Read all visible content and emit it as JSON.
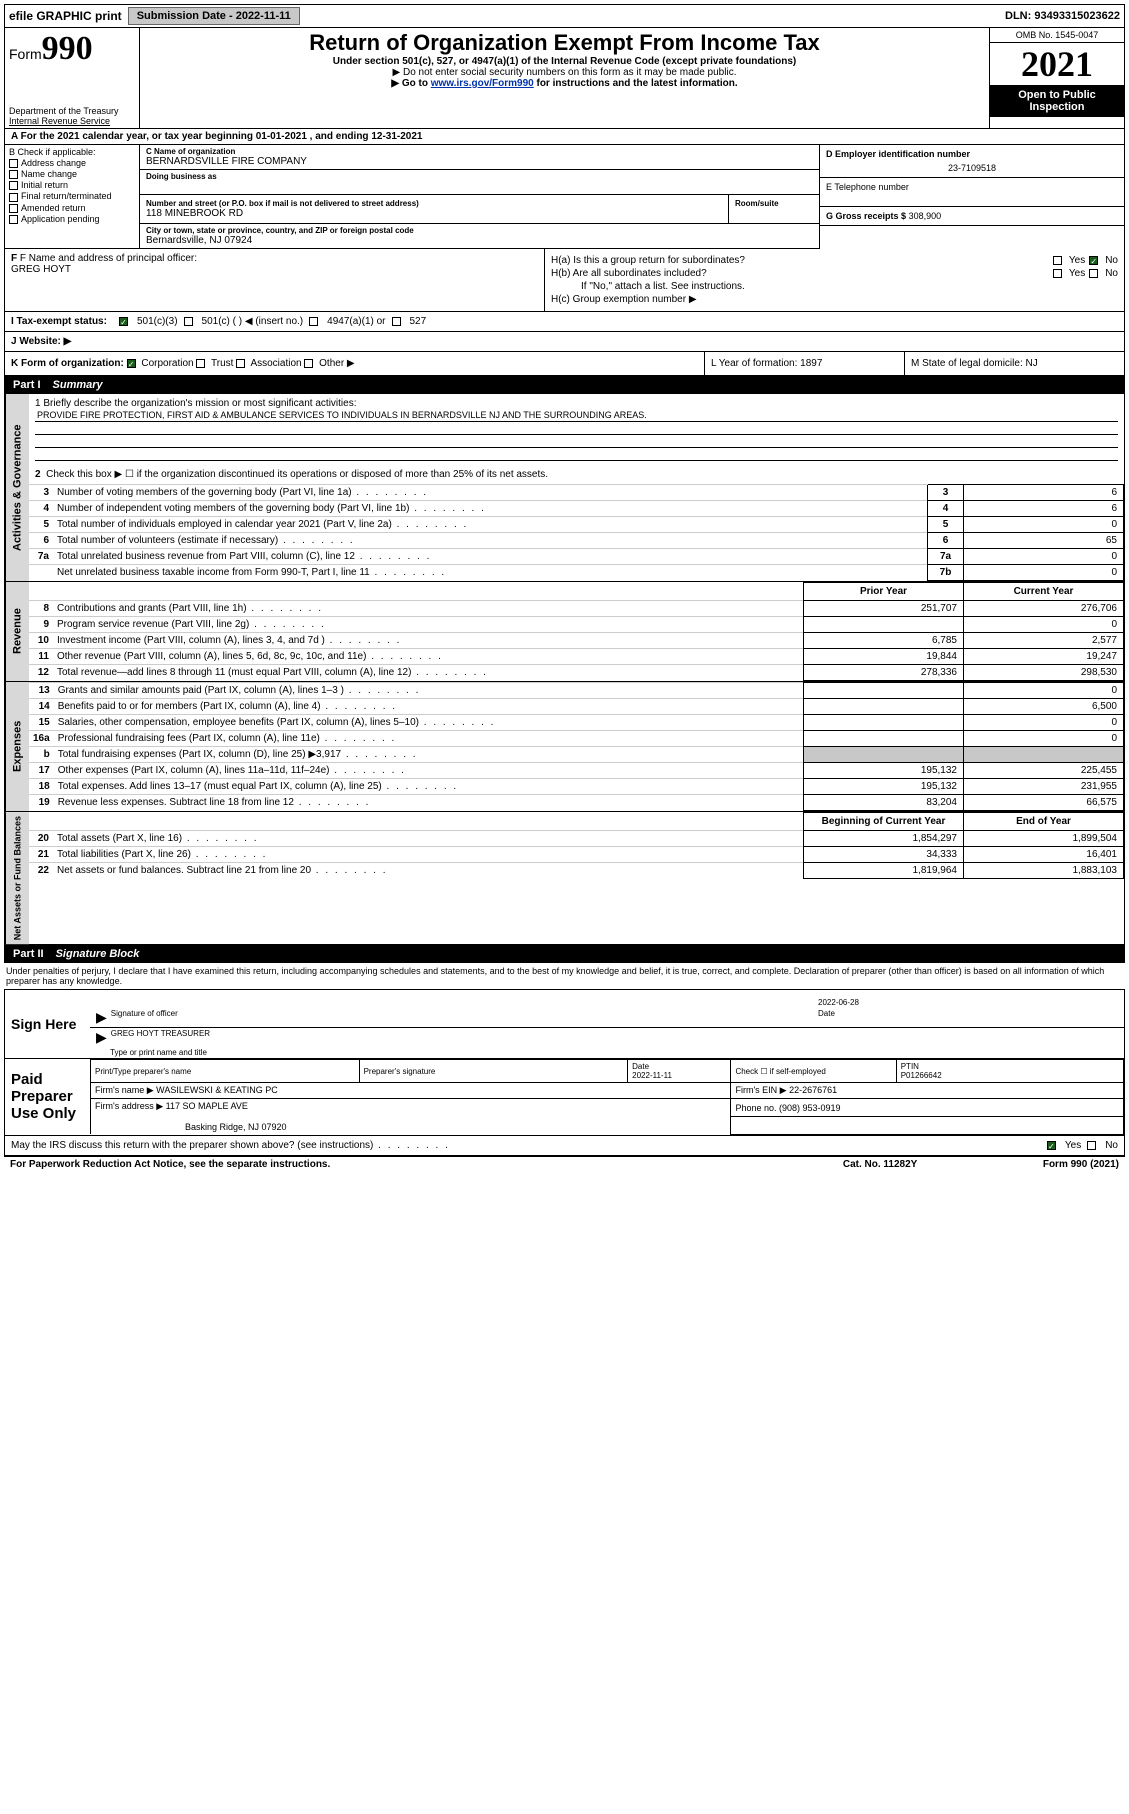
{
  "topbar": {
    "efile": "efile GRAPHIC print",
    "submission_label": "Submission Date - 2022-11-11",
    "dln": "DLN: 93493315023622"
  },
  "header": {
    "form_word": "Form",
    "form_num": "990",
    "dept": "Department of the Treasury",
    "irs": "Internal Revenue Service",
    "title": "Return of Organization Exempt From Income Tax",
    "sub": "Under section 501(c), 527, or 4947(a)(1) of the Internal Revenue Code (except private foundations)",
    "note1": "▶ Do not enter social security numbers on this form as it may be made public.",
    "note2_pre": "▶ Go to ",
    "note2_link": "www.irs.gov/Form990",
    "note2_post": " for instructions and the latest information.",
    "omb": "OMB No. 1545-0047",
    "year": "2021",
    "open": "Open to Public Inspection"
  },
  "row_a": "A For the 2021 calendar year, or tax year beginning 01-01-2021   , and ending 12-31-2021",
  "col_b": {
    "head": "B Check if applicable:",
    "items": [
      "Address change",
      "Name change",
      "Initial return",
      "Final return/terminated",
      "Amended return",
      "Application pending"
    ]
  },
  "c": {
    "name_lbl": "C Name of organization",
    "name": "BERNARDSVILLE FIRE COMPANY",
    "dba_lbl": "Doing business as",
    "addr_lbl": "Number and street (or P.O. box if mail is not delivered to street address)",
    "room_lbl": "Room/suite",
    "addr": "118 MINEBROOK RD",
    "city_lbl": "City or town, state or province, country, and ZIP or foreign postal code",
    "city": "Bernardsville, NJ  07924"
  },
  "d": {
    "lbl": "D Employer identification number",
    "val": "23-7109518"
  },
  "e": {
    "lbl": "E Telephone number",
    "val": ""
  },
  "g": {
    "lbl": "G Gross receipts $",
    "val": "308,900"
  },
  "f": {
    "lbl": "F Name and address of principal officer:",
    "name": "GREG HOYT"
  },
  "h": {
    "a": "H(a)  Is this a group return for subordinates?",
    "b": "H(b)  Are all subordinates included?",
    "note": "If \"No,\" attach a list. See instructions.",
    "c": "H(c)  Group exemption number ▶",
    "yes": "Yes",
    "no": "No"
  },
  "i": {
    "lbl": "I  Tax-exempt status:",
    "o1": "501(c)(3)",
    "o2": "501(c) (  ) ◀ (insert no.)",
    "o3": "4947(a)(1) or",
    "o4": "527"
  },
  "j": {
    "lbl": "J  Website: ▶",
    "val": ""
  },
  "k": {
    "lbl": "K Form of organization:",
    "o1": "Corporation",
    "o2": "Trust",
    "o3": "Association",
    "o4": "Other ▶",
    "l": "L Year of formation: 1897",
    "m": "M State of legal domicile: NJ"
  },
  "part1": {
    "num": "Part I",
    "title": "Summary"
  },
  "summary": {
    "l1_lbl": "1  Briefly describe the organization's mission or most significant activities:",
    "l1_val": "PROVIDE FIRE PROTECTION, FIRST AID & AMBULANCE SERVICES TO INDIVIDUALS IN BERNARDSVILLE NJ AND THE SURROUNDING AREAS.",
    "l2": "Check this box ▶ ☐  if the organization discontinued its operations or disposed of more than 25% of its net assets.",
    "rows_num": [
      {
        "n": "3",
        "d": "Number of voting members of the governing body (Part VI, line 1a)",
        "box": "3",
        "v": "6"
      },
      {
        "n": "4",
        "d": "Number of independent voting members of the governing body (Part VI, line 1b)",
        "box": "4",
        "v": "6"
      },
      {
        "n": "5",
        "d": "Total number of individuals employed in calendar year 2021 (Part V, line 2a)",
        "box": "5",
        "v": "0"
      },
      {
        "n": "6",
        "d": "Total number of volunteers (estimate if necessary)",
        "box": "6",
        "v": "65"
      },
      {
        "n": "7a",
        "d": "Total unrelated business revenue from Part VIII, column (C), line 12",
        "box": "7a",
        "v": "0"
      },
      {
        "n": "",
        "d": "Net unrelated business taxable income from Form 990-T, Part I, line 11",
        "box": "7b",
        "v": "0"
      }
    ],
    "col_hdr_prior": "Prior Year",
    "col_hdr_curr": "Current Year",
    "revenue": [
      {
        "n": "8",
        "d": "Contributions and grants (Part VIII, line 1h)",
        "p": "251,707",
        "c": "276,706"
      },
      {
        "n": "9",
        "d": "Program service revenue (Part VIII, line 2g)",
        "p": "",
        "c": "0"
      },
      {
        "n": "10",
        "d": "Investment income (Part VIII, column (A), lines 3, 4, and 7d )",
        "p": "6,785",
        "c": "2,577"
      },
      {
        "n": "11",
        "d": "Other revenue (Part VIII, column (A), lines 5, 6d, 8c, 9c, 10c, and 11e)",
        "p": "19,844",
        "c": "19,247"
      },
      {
        "n": "12",
        "d": "Total revenue—add lines 8 through 11 (must equal Part VIII, column (A), line 12)",
        "p": "278,336",
        "c": "298,530"
      }
    ],
    "expenses": [
      {
        "n": "13",
        "d": "Grants and similar amounts paid (Part IX, column (A), lines 1–3 )",
        "p": "",
        "c": "0"
      },
      {
        "n": "14",
        "d": "Benefits paid to or for members (Part IX, column (A), line 4)",
        "p": "",
        "c": "6,500"
      },
      {
        "n": "15",
        "d": "Salaries, other compensation, employee benefits (Part IX, column (A), lines 5–10)",
        "p": "",
        "c": "0"
      },
      {
        "n": "16a",
        "d": "Professional fundraising fees (Part IX, column (A), line 11e)",
        "p": "",
        "c": "0"
      },
      {
        "n": "b",
        "d": "Total fundraising expenses (Part IX, column (D), line 25) ▶3,917",
        "p": "GREY",
        "c": "GREY"
      },
      {
        "n": "17",
        "d": "Other expenses (Part IX, column (A), lines 11a–11d, 11f–24e)",
        "p": "195,132",
        "c": "225,455"
      },
      {
        "n": "18",
        "d": "Total expenses. Add lines 13–17 (must equal Part IX, column (A), line 25)",
        "p": "195,132",
        "c": "231,955"
      },
      {
        "n": "19",
        "d": "Revenue less expenses. Subtract line 18 from line 12",
        "p": "83,204",
        "c": "66,575"
      }
    ],
    "col_hdr_beg": "Beginning of Current Year",
    "col_hdr_end": "End of Year",
    "netassets": [
      {
        "n": "20",
        "d": "Total assets (Part X, line 16)",
        "p": "1,854,297",
        "c": "1,899,504"
      },
      {
        "n": "21",
        "d": "Total liabilities (Part X, line 26)",
        "p": "34,333",
        "c": "16,401"
      },
      {
        "n": "22",
        "d": "Net assets or fund balances. Subtract line 21 from line 20",
        "p": "1,819,964",
        "c": "1,883,103"
      }
    ]
  },
  "part2": {
    "num": "Part II",
    "title": "Signature Block"
  },
  "penalties": "Under penalties of perjury, I declare that I have examined this return, including accompanying schedules and statements, and to the best of my knowledge and belief, it is true, correct, and complete. Declaration of preparer (other than officer) is based on all information of which preparer has any knowledge.",
  "sign": {
    "here": "Sign Here",
    "sig_lbl": "Signature of officer",
    "date_lbl": "Date",
    "date": "2022-06-28",
    "name": "GREG HOYT  TREASURER",
    "name_lbl": "Type or print name and title"
  },
  "paid": {
    "lbl": "Paid Preparer Use Only",
    "h1": "Print/Type preparer's name",
    "h2": "Preparer's signature",
    "h3": "Date",
    "h3v": "2022-11-11",
    "h4": "Check ☐ if self-employed",
    "h5": "PTIN",
    "h5v": "P01266642",
    "firm_lbl": "Firm's name    ▶",
    "firm": "WASILEWSKI & KEATING PC",
    "ein_lbl": "Firm's EIN ▶",
    "ein": "22-2676761",
    "addr_lbl": "Firm's address ▶",
    "addr1": "117 SO MAPLE AVE",
    "addr2": "Basking Ridge, NJ  07920",
    "phone_lbl": "Phone no.",
    "phone": "(908) 953-0919"
  },
  "may": {
    "q": "May the IRS discuss this return with the preparer shown above? (see instructions)",
    "yes": "Yes",
    "no": "No"
  },
  "footer": {
    "l": "For Paperwork Reduction Act Notice, see the separate instructions.",
    "m": "Cat. No. 11282Y",
    "r": "Form 990 (2021)"
  },
  "vtabs": {
    "gov": "Activities & Governance",
    "rev": "Revenue",
    "exp": "Expenses",
    "net": "Net Assets or Fund Balances"
  }
}
